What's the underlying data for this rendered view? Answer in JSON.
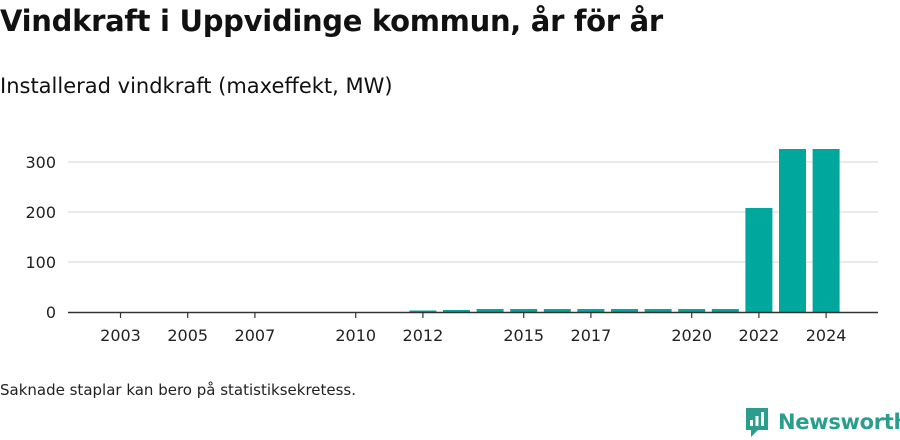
{
  "header": {
    "title": "Vindkraft i Uppvidinge kommun, år för år",
    "subtitle": "Installerad vindkraft (maxeffekt, MW)"
  },
  "footer": {
    "note": "Saknade staplar kan bero på statistiksekretess.",
    "brand": "Newsworthy"
  },
  "colors": {
    "bar": "#00a79d",
    "grid": "#dddddd",
    "axis": "#333333",
    "brand": "#2a9d8f"
  },
  "icons": {
    "brand_logo": "newsworthy-logo-icon"
  },
  "chart_data": {
    "type": "bar",
    "title": "Vindkraft i Uppvidinge kommun, år för år",
    "subtitle": "Installerad vindkraft (maxeffekt, MW)",
    "xlabel": "",
    "ylabel": "",
    "ylim": [
      0,
      340
    ],
    "yticks": [
      0,
      100,
      200,
      300
    ],
    "xticks": [
      "2003",
      "2005",
      "2007",
      "2010",
      "2012",
      "2015",
      "2017",
      "2020",
      "2022",
      "2024"
    ],
    "categories": [
      "2012",
      "2013",
      "2014",
      "2015",
      "2016",
      "2017",
      "2018",
      "2019",
      "2020",
      "2021",
      "2022",
      "2023",
      "2024"
    ],
    "values": [
      3,
      4,
      6,
      6,
      6,
      6,
      6,
      6,
      6,
      6,
      208,
      326,
      326
    ],
    "grid": true,
    "legend": "none"
  }
}
